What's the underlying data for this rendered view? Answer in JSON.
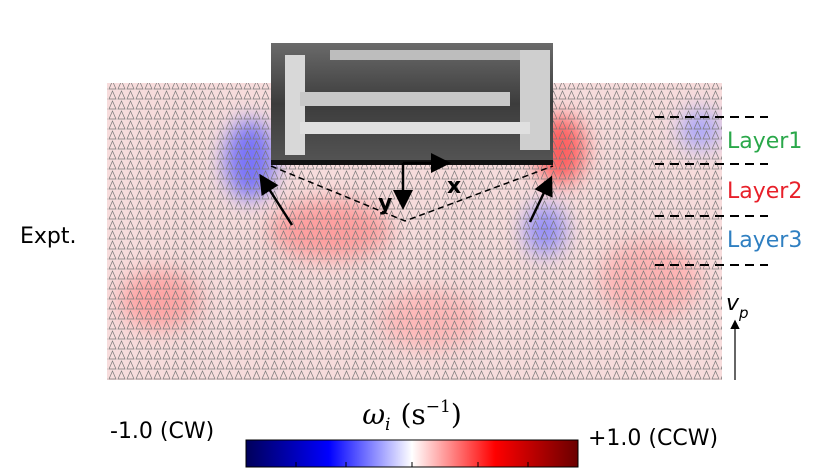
{
  "figure": {
    "row_label": "Expt.",
    "layers": [
      "Layer1",
      "Layer2",
      "Layer3"
    ],
    "axes": {
      "x": "x",
      "y": "y"
    },
    "velocity": {
      "symbol": "v",
      "subscript": "p"
    },
    "colorbar": {
      "symbol": "ω",
      "symbol_subscript": "i",
      "unit_open": "(s",
      "unit_exponent": "−1",
      "unit_close": ")",
      "min_label": "-1.0 (CW)",
      "max_label": "+1.0 (CCW)"
    }
  }
}
